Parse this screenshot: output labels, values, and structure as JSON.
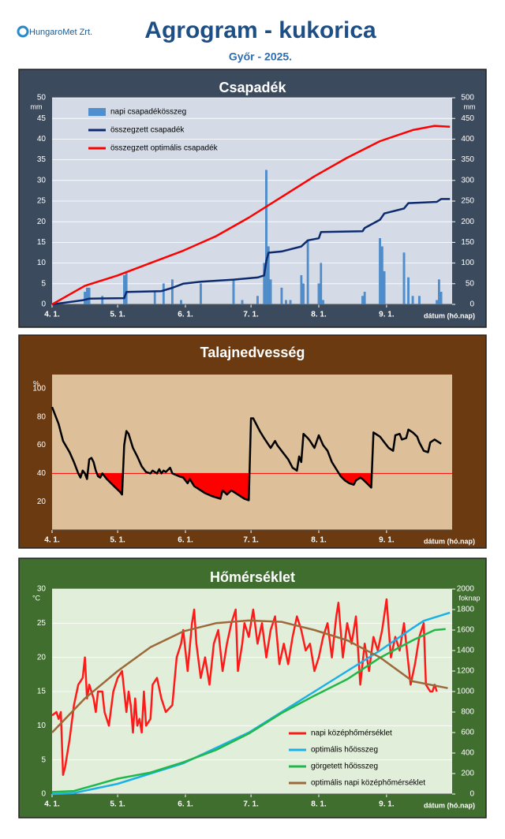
{
  "header": {
    "logo": "HungaroMet Zrt.",
    "title": "Agrogram - kukorica",
    "subtitle": "Győr - 2025."
  },
  "chart_data": [
    {
      "type": "combo",
      "title": "Csapadék",
      "y_unit": "mm",
      "y2_unit": "mm",
      "xlabel": "dátum (hó.nap)",
      "grid": true,
      "legend": "top-left",
      "xlim": [
        0,
        183
      ],
      "xticks": [
        {
          "value": 0,
          "label": "4. 1."
        },
        {
          "value": 30,
          "label": "5. 1."
        },
        {
          "value": 61,
          "label": "6. 1."
        },
        {
          "value": 91,
          "label": "7. 1."
        },
        {
          "value": 122,
          "label": "8. 1."
        },
        {
          "value": 153,
          "label": "9. 1."
        }
      ],
      "ylim": [
        0,
        50
      ],
      "yticks": [
        0,
        5,
        10,
        15,
        20,
        25,
        30,
        35,
        40,
        45,
        50
      ],
      "y2lim": [
        0,
        500
      ],
      "y2ticks": [
        0,
        50,
        100,
        150,
        200,
        250,
        300,
        350,
        400,
        450,
        500
      ],
      "series": [
        {
          "name": "napi csapadékösszeg",
          "type": "bar",
          "color": "#4f8fd0",
          "x": [
            15,
            16,
            17,
            23,
            33,
            34,
            47,
            51,
            55,
            59,
            68,
            83,
            87,
            94,
            97,
            98,
            99,
            100,
            105,
            107,
            109,
            114,
            115,
            117,
            122,
            123,
            124,
            142,
            143,
            150,
            151,
            152,
            161,
            163,
            165,
            168,
            176,
            177,
            178
          ],
          "values": [
            3,
            4,
            4,
            2,
            7,
            8,
            3,
            5,
            6,
            1,
            5,
            6,
            1,
            2,
            10,
            32.5,
            14,
            6,
            4,
            1,
            1,
            7,
            5,
            15.5,
            5,
            10,
            1,
            2,
            3,
            16,
            14,
            8,
            12.5,
            6.5,
            2,
            2,
            1,
            6,
            3
          ]
        },
        {
          "name": "összegzett csapadék",
          "type": "line",
          "axis": "y2",
          "color": "#0d2a6e",
          "x": [
            0,
            14,
            17,
            33,
            34,
            50,
            55,
            60,
            68,
            83,
            94,
            97,
            98,
            99,
            105,
            114,
            117,
            122,
            123,
            142,
            143,
            150,
            152,
            161,
            163,
            176,
            178,
            182
          ],
          "values": [
            0,
            10,
            14,
            15,
            30,
            32,
            40,
            50,
            55,
            60,
            65,
            70,
            105,
            125,
            128,
            140,
            155,
            160,
            175,
            177,
            185,
            205,
            220,
            232,
            245,
            248,
            255,
            255
          ]
        },
        {
          "name": "összegzett optimális csapadék",
          "type": "line",
          "axis": "y2",
          "color": "#ff0000",
          "x": [
            0,
            15,
            30,
            45,
            60,
            75,
            90,
            105,
            120,
            135,
            150,
            165,
            175,
            182
          ],
          "values": [
            0,
            45,
            70,
            100,
            130,
            165,
            210,
            260,
            310,
            355,
            395,
            422,
            432,
            430
          ]
        }
      ]
    },
    {
      "type": "line",
      "title": "Talajnedvesség",
      "y_unit": "%",
      "xlabel": "dátum (hó.nap)",
      "grid": false,
      "threshold": 40,
      "threshold_color": "#ff0000",
      "xlim": [
        0,
        183
      ],
      "xticks": [
        {
          "value": 0,
          "label": "4. 1."
        },
        {
          "value": 30,
          "label": "5. 1."
        },
        {
          "value": 61,
          "label": "6. 1."
        },
        {
          "value": 91,
          "label": "7. 1."
        },
        {
          "value": 122,
          "label": "8. 1."
        },
        {
          "value": 153,
          "label": "9. 1."
        }
      ],
      "ylim": [
        0,
        110
      ],
      "yticks": [
        20,
        40,
        60,
        80,
        100
      ],
      "series": [
        {
          "type": "line",
          "color": "#000000",
          "x": [
            0,
            3,
            5,
            8,
            10,
            12,
            13,
            14,
            15,
            16,
            17,
            18,
            19,
            20,
            21,
            22,
            23,
            25,
            27,
            29,
            31,
            32,
            33,
            34,
            35,
            37,
            39,
            41,
            43,
            45,
            46,
            48,
            49,
            50,
            51,
            52,
            54,
            55,
            58,
            60,
            62,
            63,
            65,
            67,
            70,
            73,
            75,
            77,
            78,
            80,
            82,
            85,
            88,
            90,
            91,
            92,
            95,
            97,
            100,
            102,
            103,
            105,
            108,
            110,
            112,
            113,
            114,
            115,
            117,
            118,
            120,
            122,
            124,
            126,
            128,
            130,
            132,
            134,
            136,
            138,
            139,
            141,
            142,
            144,
            146,
            147,
            150,
            152,
            154,
            156,
            157,
            159,
            160,
            162,
            163,
            165,
            167,
            168,
            170,
            172,
            173,
            175,
            177,
            178
          ],
          "values": [
            87,
            75,
            63,
            55,
            48,
            40,
            37,
            42,
            40,
            36,
            50,
            51,
            48,
            42,
            38,
            37,
            40,
            36,
            33,
            30,
            27,
            25,
            60,
            70,
            68,
            58,
            52,
            45,
            41,
            40,
            42,
            40,
            43,
            40,
            42,
            41,
            44,
            40,
            38,
            37,
            33,
            36,
            31,
            29,
            26,
            24,
            23,
            22,
            28,
            25,
            28,
            25,
            22,
            21,
            79,
            79,
            70,
            65,
            58,
            63,
            60,
            56,
            50,
            44,
            42,
            52,
            48,
            68,
            65,
            63,
            58,
            67,
            60,
            56,
            48,
            43,
            38,
            35,
            33,
            32,
            35,
            37,
            36,
            33,
            30,
            69,
            66,
            62,
            58,
            56,
            67,
            68,
            64,
            65,
            71,
            69,
            66,
            62,
            56,
            55,
            62,
            64,
            62,
            61
          ]
        }
      ]
    },
    {
      "type": "line",
      "title": "Hőmérséklet",
      "y_unit": "°C",
      "y2_unit": "foknap",
      "xlabel": "dátum (hó.nap)",
      "grid": true,
      "legend": "bottom-right",
      "xlim": [
        0,
        183
      ],
      "xticks": [
        {
          "value": 0,
          "label": "4. 1."
        },
        {
          "value": 30,
          "label": "5. 1."
        },
        {
          "value": 61,
          "label": "6. 1."
        },
        {
          "value": 91,
          "label": "7. 1."
        },
        {
          "value": 122,
          "label": "8. 1."
        },
        {
          "value": 153,
          "label": "9. 1."
        }
      ],
      "ylim": [
        0,
        30
      ],
      "yticks": [
        0,
        5,
        10,
        15,
        20,
        25,
        30
      ],
      "y2lim": [
        0,
        2000
      ],
      "y2ticks": [
        0,
        200,
        400,
        600,
        800,
        1000,
        1200,
        1400,
        1600,
        1800,
        2000
      ],
      "series": [
        {
          "name": "napi középhőmérséklet",
          "type": "line",
          "color": "#ff1a1a",
          "x": [
            0,
            2,
            3,
            4,
            5,
            6,
            8,
            10,
            12,
            14,
            15,
            16,
            17,
            19,
            20,
            21,
            23,
            24,
            26,
            28,
            30,
            32,
            34,
            35,
            36,
            37,
            38,
            39,
            40,
            41,
            42,
            43,
            45,
            46,
            48,
            50,
            52,
            55,
            57,
            59,
            60,
            62,
            64,
            65,
            66,
            68,
            70,
            72,
            74,
            76,
            78,
            80,
            82,
            84,
            85,
            87,
            88,
            90,
            92,
            94,
            96,
            98,
            100,
            102,
            104,
            106,
            108,
            110,
            112,
            114,
            116,
            118,
            120,
            122,
            124,
            126,
            128,
            130,
            131,
            133,
            135,
            137,
            139,
            141,
            143,
            145,
            147,
            149,
            151,
            153,
            155,
            157,
            159,
            161,
            163,
            164,
            166,
            168,
            170,
            171,
            173,
            174,
            175,
            176
          ],
          "values": [
            11.5,
            12,
            11,
            12,
            2.8,
            4,
            8,
            13,
            16,
            17,
            20,
            14,
            16,
            14,
            12,
            15,
            15,
            12,
            10,
            15,
            17,
            18,
            12,
            15,
            13,
            9,
            14,
            10,
            11,
            9,
            15,
            10,
            11,
            16,
            17,
            14,
            12,
            13,
            20,
            22,
            24,
            18,
            25,
            27,
            22,
            17,
            20,
            16,
            22,
            24,
            18,
            22,
            25,
            27,
            18,
            22,
            25,
            23,
            27,
            22,
            25,
            20,
            24,
            26,
            19,
            22,
            19,
            23,
            26,
            24,
            21,
            22,
            18,
            20,
            23,
            25,
            20,
            26,
            28,
            20,
            25,
            22,
            26,
            16,
            22,
            18,
            23,
            21,
            24,
            28.5,
            20,
            23,
            21,
            25,
            19,
            16,
            19,
            23,
            25,
            16,
            15,
            15,
            16,
            15
          ]
        },
        {
          "name": "optimális hőösszeg",
          "type": "line",
          "axis": "y2",
          "color": "#1ab0e8",
          "x": [
            0,
            10,
            30,
            60,
            90,
            120,
            150,
            165,
            170,
            182
          ],
          "values": [
            0,
            10,
            100,
            300,
            600,
            1000,
            1400,
            1620,
            1690,
            1770
          ]
        },
        {
          "name": "görgetett hőösszeg",
          "type": "line",
          "axis": "y2",
          "color": "#20b84a",
          "x": [
            0,
            10,
            20,
            30,
            45,
            60,
            75,
            90,
            105,
            120,
            135,
            150,
            165,
            175,
            180
          ],
          "values": [
            20,
            30,
            90,
            150,
            210,
            310,
            430,
            590,
            790,
            960,
            1120,
            1330,
            1500,
            1600,
            1610
          ]
        },
        {
          "name": "optimális napi középhőmérséklet",
          "type": "line",
          "color": "#9c6a3a",
          "x": [
            0,
            15,
            30,
            45,
            60,
            75,
            90,
            105,
            120,
            135,
            150,
            165,
            181
          ],
          "values": [
            9,
            14,
            18,
            21.5,
            23.8,
            25,
            25.4,
            25.2,
            24,
            22.5,
            20,
            16.5,
            15.5
          ]
        }
      ]
    }
  ]
}
